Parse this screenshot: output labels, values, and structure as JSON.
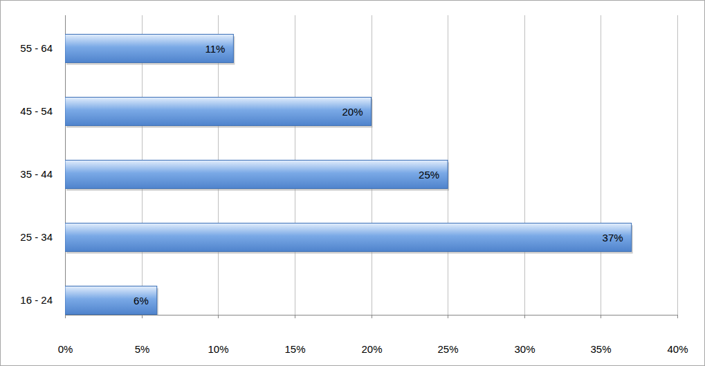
{
  "chart_data": {
    "type": "bar",
    "orientation": "horizontal",
    "categories": [
      "16 - 24",
      "25 - 34",
      "35 - 44",
      "45 - 54",
      "55 - 64"
    ],
    "values": [
      6,
      37,
      25,
      20,
      11
    ],
    "value_labels": [
      "6%",
      "37%",
      "25%",
      "20%",
      "11%"
    ],
    "data_labels": true,
    "color": "#7aa9e6",
    "xlim": [
      0,
      40
    ],
    "xticks": [
      {
        "value": 0,
        "label": "0%"
      },
      {
        "value": 5,
        "label": "5%"
      },
      {
        "value": 10,
        "label": "10%"
      },
      {
        "value": 15,
        "label": "15%"
      },
      {
        "value": 20,
        "label": "20%"
      },
      {
        "value": 25,
        "label": "25%"
      },
      {
        "value": 30,
        "label": "30%"
      },
      {
        "value": 35,
        "label": "35%"
      },
      {
        "value": 40,
        "label": "40%"
      }
    ],
    "grid": true
  }
}
